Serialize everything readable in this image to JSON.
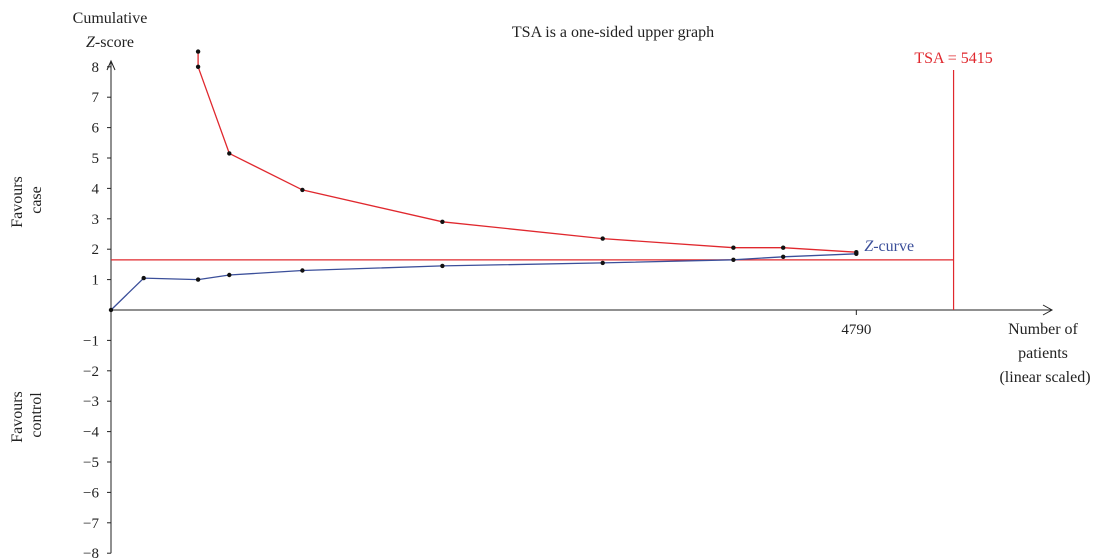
{
  "chart_data": {
    "type": "line",
    "title": "TSA is a one-sided upper graph",
    "ylabel_line1": "Cumulative",
    "ylabel_line2_italic": "Z",
    "ylabel_line2_rest": "-score",
    "xlabel_lines": [
      "Number of",
      "patients",
      "(linear scaled)"
    ],
    "region_upper_lines": [
      "Favours",
      "case"
    ],
    "region_lower_lines": [
      "Favours",
      "control"
    ],
    "ylim": [
      -8,
      8
    ],
    "y_ticks": [
      "8",
      "7",
      "6",
      "5",
      "4",
      "3",
      "2",
      "1",
      "−1",
      "−2",
      "−3",
      "−4",
      "−5",
      "−6",
      "−7",
      "−8"
    ],
    "y_tick_values": [
      8,
      7,
      6,
      5,
      4,
      3,
      2,
      1,
      -1,
      -2,
      -3,
      -4,
      -5,
      -6,
      -7,
      -8
    ],
    "x_tick_label": "4790",
    "x_tick_value": 4790,
    "xlim": [
      0,
      6000
    ],
    "tsa_label": "TSA = 5415",
    "tsa_value": 5415,
    "conventional_boundary_z": 1.65,
    "series": [
      {
        "key": "z_curve",
        "name_italic": "Z",
        "name_rest": "-curve",
        "color": "#3b4f9a",
        "x": [
          0,
          210,
          560,
          760,
          1230,
          2130,
          3160,
          4000,
          4320,
          4790
        ],
        "y": [
          0.0,
          1.05,
          1.0,
          1.15,
          1.3,
          1.45,
          1.55,
          1.65,
          1.75,
          1.85
        ]
      },
      {
        "key": "monitoring_boundary",
        "color": "#e0282e",
        "x": [
          560,
          560,
          760,
          1230,
          2130,
          3160,
          4000,
          4320,
          4790
        ],
        "y": [
          8.5,
          8.0,
          5.15,
          3.95,
          2.9,
          2.35,
          2.05,
          2.05,
          1.9
        ]
      }
    ],
    "colors": {
      "boundary": "#e0282e",
      "zcurve": "#3b4f9a",
      "axis": "#222222",
      "points": "#111111"
    }
  }
}
